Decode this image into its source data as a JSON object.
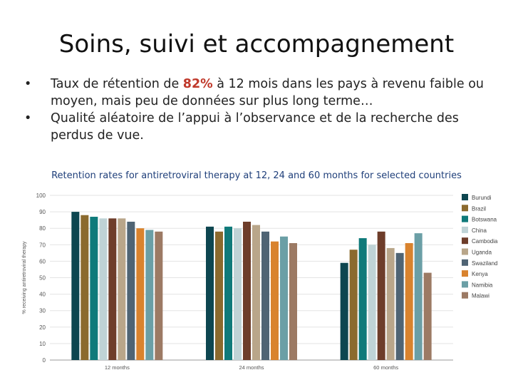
{
  "slide": {
    "title": "Soins, suivi et accompagnement",
    "bullets": [
      {
        "pre": "Taux de rétention de ",
        "highlight": "82%",
        "post": " à 12 mois dans les pays à revenu faible ou moyen, mais peu de données sur plus long terme…"
      },
      {
        "pre": "Qualité aléatoire de l’appui à l’observance et de la recherche des perdus de vue.",
        "highlight": "",
        "post": ""
      }
    ],
    "bullet_glyph": "•",
    "highlight_color": "#c0392b"
  },
  "chart_data": {
    "type": "bar",
    "title": "Retention rates for antiretroviral therapy at 12, 24 and 60 months for selected countries",
    "ylabel": "% receiving antiretroviral therapy",
    "xlabel": "",
    "ylim": [
      0,
      100
    ],
    "yticks": [
      0,
      10,
      20,
      30,
      40,
      50,
      60,
      70,
      80,
      90,
      100
    ],
    "categories": [
      "12 months",
      "24 months",
      "60 months"
    ],
    "legend_position": "right",
    "grid": true,
    "series": [
      {
        "name": "Burundi",
        "color": "#0d4650",
        "values": [
          90,
          81,
          59
        ]
      },
      {
        "name": "Brazil",
        "color": "#8b6a2e",
        "values": [
          88,
          78,
          67
        ]
      },
      {
        "name": "Botswana",
        "color": "#0f7a7a",
        "values": [
          87,
          81,
          74
        ]
      },
      {
        "name": "China",
        "color": "#bfd3d6",
        "values": [
          86,
          80,
          70
        ]
      },
      {
        "name": "Cambodia",
        "color": "#6e3d2a",
        "values": [
          86,
          84,
          78
        ]
      },
      {
        "name": "Uganda",
        "color": "#b9a68a",
        "values": [
          86,
          82,
          68
        ]
      },
      {
        "name": "Swaziland",
        "color": "#4f6474",
        "values": [
          84,
          78,
          65
        ]
      },
      {
        "name": "Kenya",
        "color": "#d9832e",
        "values": [
          80,
          72,
          71
        ]
      },
      {
        "name": "Namibia",
        "color": "#6b9fa6",
        "values": [
          79,
          75,
          77
        ]
      },
      {
        "name": "Malawi",
        "color": "#9c7a64",
        "values": [
          78,
          71,
          53
        ]
      }
    ]
  }
}
